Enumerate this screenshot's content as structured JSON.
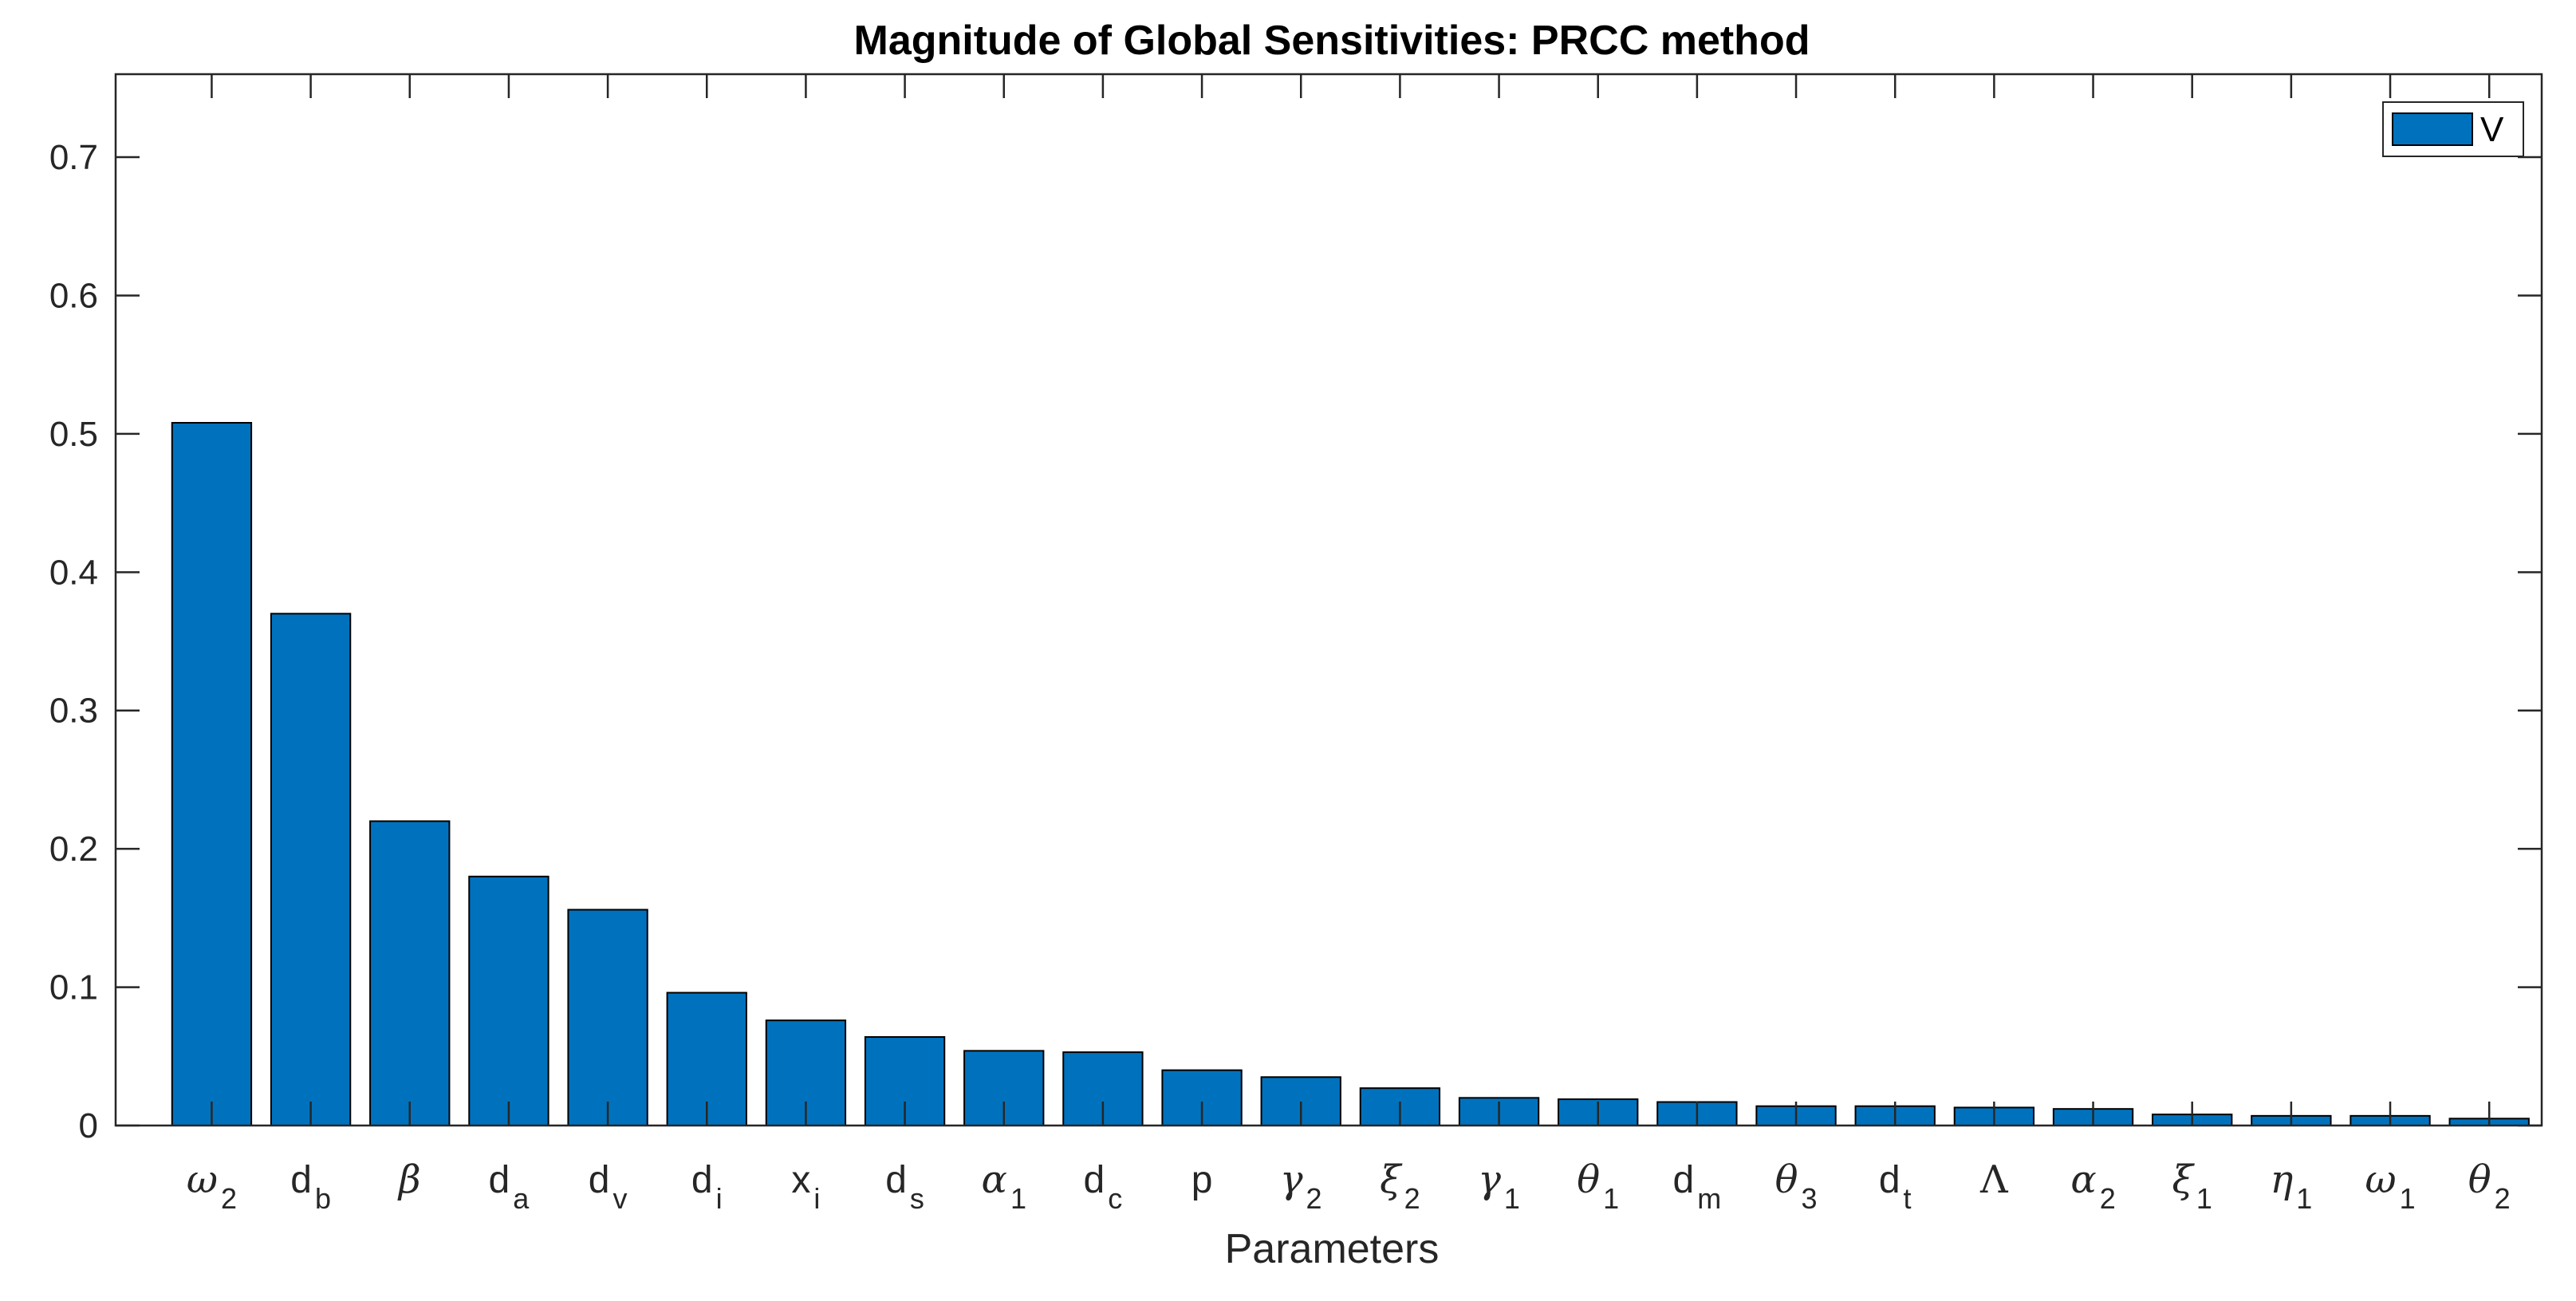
{
  "chart_data": {
    "type": "bar",
    "title": "Magnitude of Global Sensitivities: PRCC method",
    "xlabel": "Parameters",
    "ylabel": "",
    "ylim": [
      0,
      0.76
    ],
    "yticks": [
      0,
      0.1,
      0.2,
      0.3,
      0.4,
      0.5,
      0.6,
      0.7
    ],
    "ytick_labels": [
      "0",
      "0.1",
      "0.2",
      "0.3",
      "0.4",
      "0.5",
      "0.6",
      "0.7"
    ],
    "grid": false,
    "legend_position": "top-right",
    "categories": [
      {
        "base": "ω",
        "sub": "2",
        "greek": true
      },
      {
        "base": "d",
        "sub": "b",
        "greek": false
      },
      {
        "base": "β",
        "sub": "",
        "greek": true
      },
      {
        "base": "d",
        "sub": "a",
        "greek": false
      },
      {
        "base": "d",
        "sub": "v",
        "greek": false
      },
      {
        "base": "d",
        "sub": "i",
        "greek": false
      },
      {
        "base": "x",
        "sub": "i",
        "greek": false
      },
      {
        "base": "d",
        "sub": "s",
        "greek": false
      },
      {
        "base": "α",
        "sub": "1",
        "greek": true
      },
      {
        "base": "d",
        "sub": "c",
        "greek": false
      },
      {
        "base": "p",
        "sub": "",
        "greek": false
      },
      {
        "base": "γ",
        "sub": "2",
        "greek": true
      },
      {
        "base": "ξ",
        "sub": "2",
        "greek": true
      },
      {
        "base": "γ",
        "sub": "1",
        "greek": true
      },
      {
        "base": "θ",
        "sub": "1",
        "greek": true
      },
      {
        "base": "d",
        "sub": "m",
        "greek": false
      },
      {
        "base": "θ",
        "sub": "3",
        "greek": true
      },
      {
        "base": "d",
        "sub": "t",
        "greek": false
      },
      {
        "base": "Λ",
        "sub": "",
        "greek": true,
        "upright": true
      },
      {
        "base": "α",
        "sub": "2",
        "greek": true
      },
      {
        "base": "ξ",
        "sub": "1",
        "greek": true
      },
      {
        "base": "η",
        "sub": "1",
        "greek": true
      },
      {
        "base": "ω",
        "sub": "1",
        "greek": true
      },
      {
        "base": "θ",
        "sub": "2",
        "greek": true
      }
    ],
    "series": [
      {
        "name": "V",
        "color": "#0072BD",
        "values": [
          0.508,
          0.37,
          0.22,
          0.18,
          0.156,
          0.096,
          0.076,
          0.064,
          0.054,
          0.053,
          0.04,
          0.035,
          0.027,
          0.02,
          0.019,
          0.017,
          0.014,
          0.014,
          0.013,
          0.012,
          0.008,
          0.007,
          0.007,
          0.005
        ]
      }
    ]
  }
}
